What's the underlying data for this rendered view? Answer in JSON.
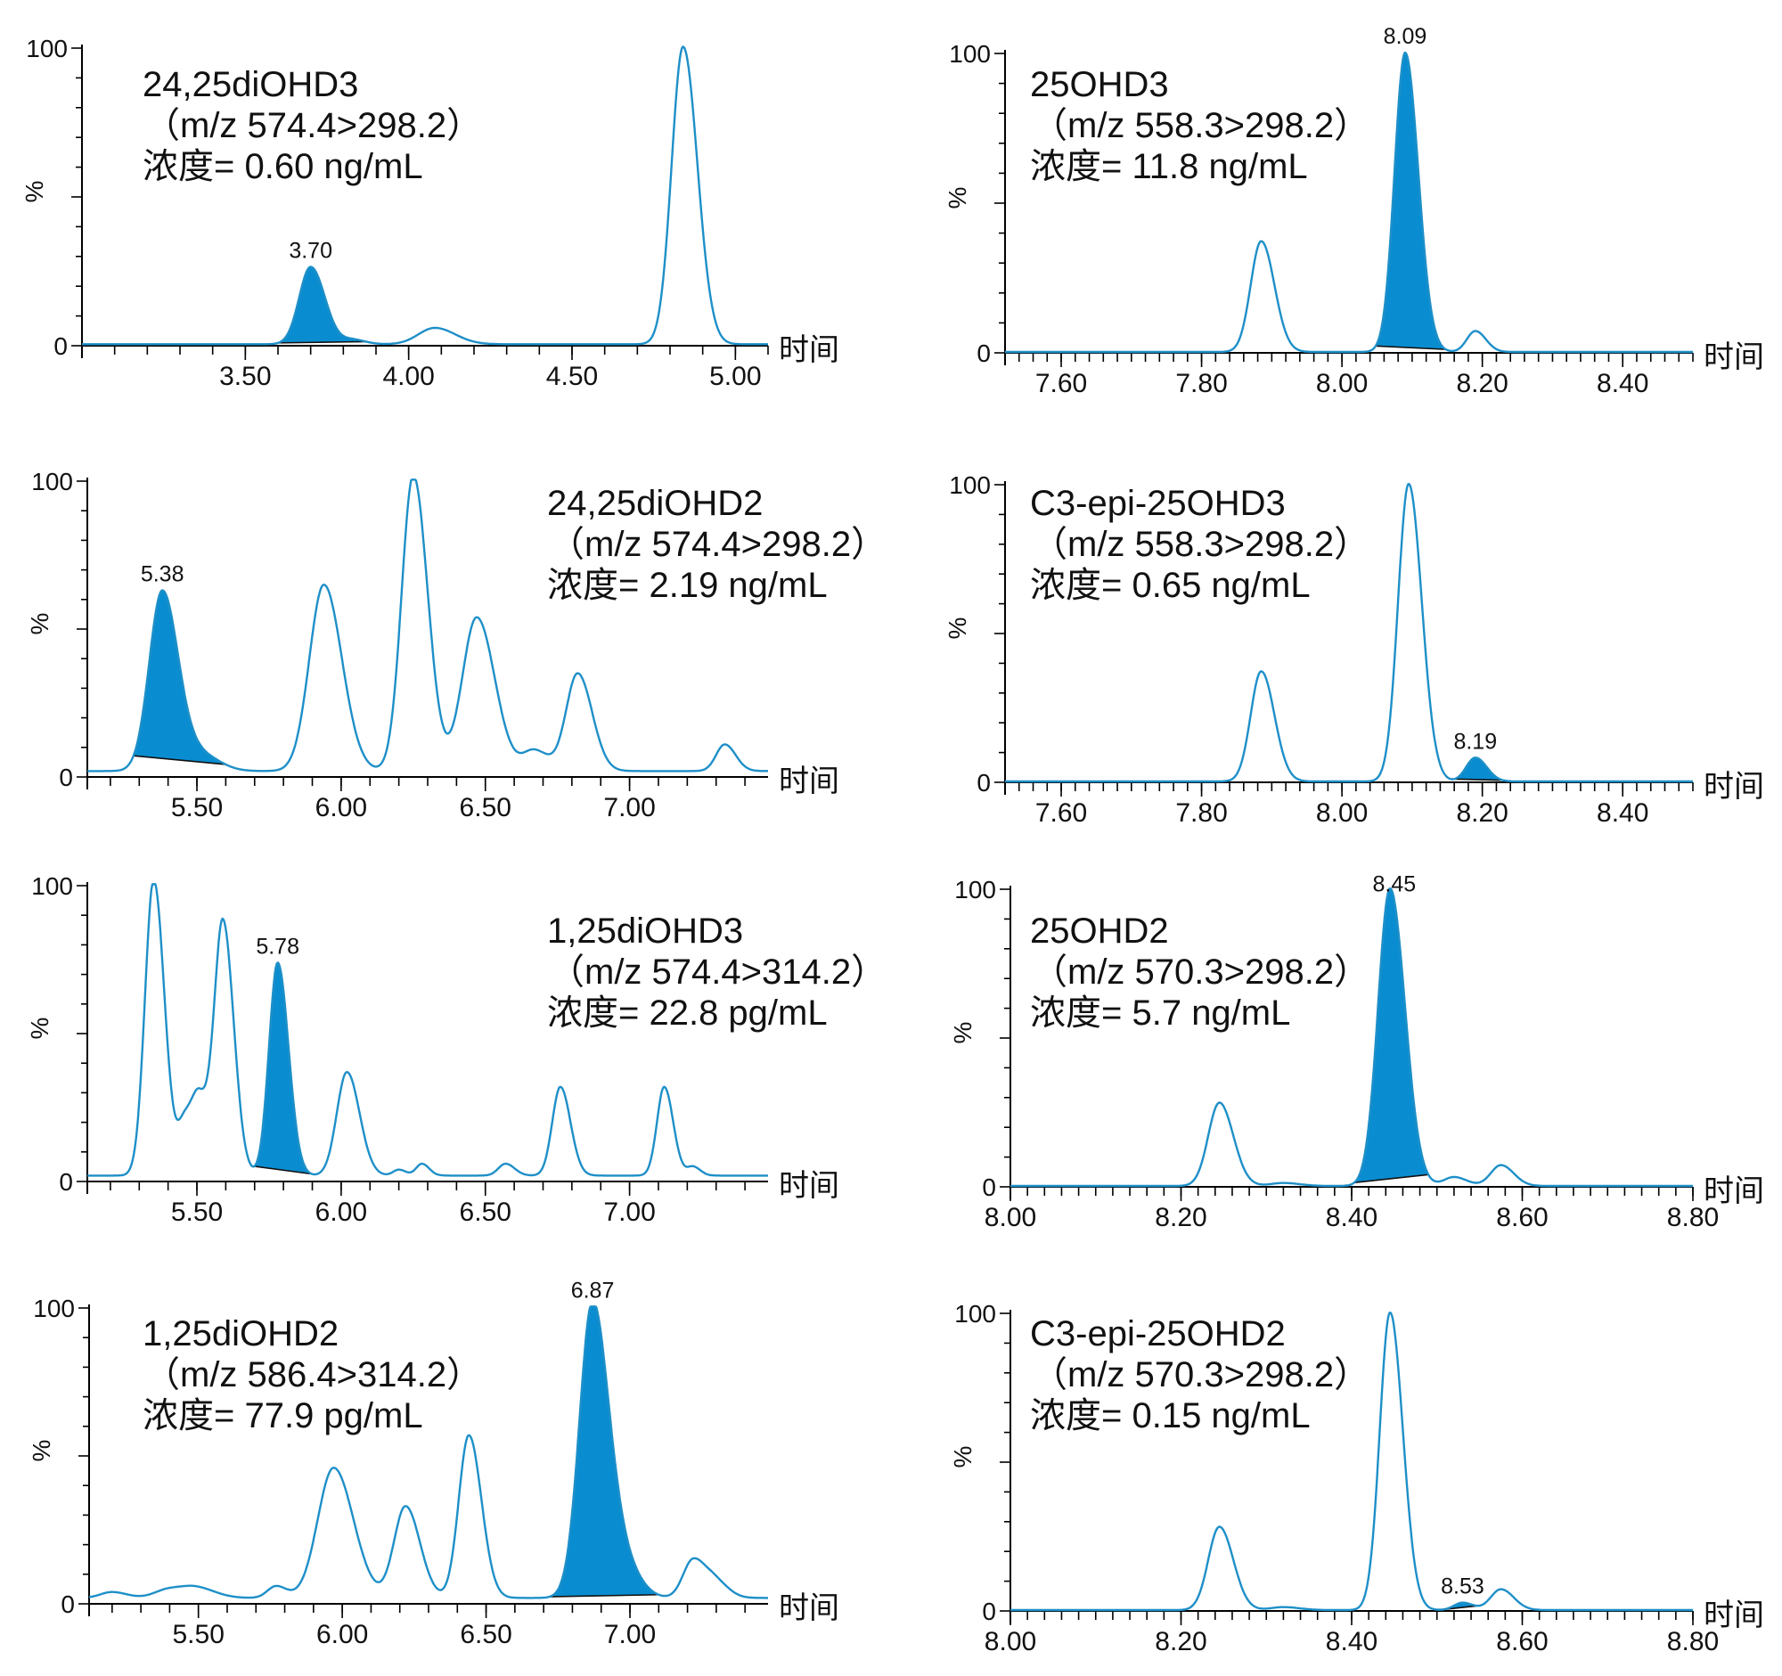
{
  "colors": {
    "trace": "#1e8fc8",
    "fill": "#0a8dd0",
    "axis": "#000000"
  },
  "chart_data": [
    {
      "type": "line",
      "compound": "24,25diOHD3",
      "transition": "（m/z 574.4>298.2）",
      "concentration": "浓度= 0.60 ng/mL",
      "xlabel": "时间",
      "ylabel": "%",
      "xlim": [
        3.0,
        5.1
      ],
      "ylim": [
        0,
        100
      ],
      "xticks": [
        "3.50",
        "4.00",
        "4.50",
        "5.00"
      ],
      "yticks": [
        "0",
        "100"
      ],
      "peaks": [
        {
          "rt": 3.7,
          "h": 26,
          "w": 0.035
        },
        {
          "rt": 3.83,
          "h": 1.5,
          "w": 0.03
        },
        {
          "rt": 4.08,
          "h": 5.5,
          "w": 0.05
        },
        {
          "rt": 4.84,
          "h": 100,
          "w": 0.035
        }
      ],
      "baseline": 0.5,
      "highlight": {
        "rt_label": "3.70",
        "from": 3.6,
        "to": 3.87
      }
    },
    {
      "type": "line",
      "compound": "25OHD3",
      "transition": "（m/z 558.3>298.2）",
      "concentration": "浓度= 11.8 ng/mL",
      "xlabel": "时间",
      "ylabel": "%",
      "xlim": [
        7.52,
        8.5
      ],
      "ylim": [
        0,
        100
      ],
      "xticks": [
        "7.60",
        "7.80",
        "8.00",
        "8.20",
        "8.40"
      ],
      "yticks": [
        "0",
        "100"
      ],
      "peaks": [
        {
          "rt": 7.885,
          "h": 37,
          "w": 0.015
        },
        {
          "rt": 8.09,
          "h": 100,
          "w": 0.015
        },
        {
          "rt": 8.19,
          "h": 7,
          "w": 0.012
        }
      ],
      "baseline": 0.3,
      "highlight": {
        "rt_label": "8.09",
        "from": 8.048,
        "to": 8.148
      }
    },
    {
      "type": "line",
      "compound": "24,25diOHD2",
      "transition": "（m/z 574.4>298.2）",
      "concentration": "浓度= 2.19 ng/mL",
      "xlabel": "时间",
      "ylabel": "%",
      "xlim": [
        5.12,
        7.48
      ],
      "ylim": [
        0,
        100
      ],
      "xticks": [
        "5.50",
        "6.00",
        "6.50",
        "7.00"
      ],
      "yticks": [
        "0",
        "100"
      ],
      "peaks": [
        {
          "rt": 5.38,
          "h": 61,
          "w": 0.045
        },
        {
          "rt": 5.52,
          "h": 5,
          "w": 0.05
        },
        {
          "rt": 5.94,
          "h": 63,
          "w": 0.05
        },
        {
          "rt": 6.25,
          "h": 100,
          "w": 0.04
        },
        {
          "rt": 6.47,
          "h": 52,
          "w": 0.05
        },
        {
          "rt": 6.67,
          "h": 7,
          "w": 0.04
        },
        {
          "rt": 6.82,
          "h": 33,
          "w": 0.04
        },
        {
          "rt": 7.33,
          "h": 9,
          "w": 0.03
        }
      ],
      "baseline": 2,
      "highlight": {
        "rt_label": "5.38",
        "from": 5.28,
        "to": 5.6
      }
    },
    {
      "type": "line",
      "compound": "C3-epi-25OHD3",
      "transition": "（m/z 558.3>298.2）",
      "concentration": "浓度= 0.65 ng/mL",
      "xlabel": "时间",
      "ylabel": "%",
      "xlim": [
        7.52,
        8.5
      ],
      "ylim": [
        0,
        100
      ],
      "xticks": [
        "7.60",
        "7.80",
        "8.00",
        "8.20",
        "8.40"
      ],
      "yticks": [
        "0",
        "100"
      ],
      "peaks": [
        {
          "rt": 7.885,
          "h": 37,
          "w": 0.015
        },
        {
          "rt": 8.095,
          "h": 100,
          "w": 0.015
        },
        {
          "rt": 8.19,
          "h": 8,
          "w": 0.013
        }
      ],
      "baseline": 0.3,
      "highlight": {
        "rt_label": "8.19",
        "from": 8.155,
        "to": 8.23
      }
    },
    {
      "type": "line",
      "compound": "1,25diOHD3",
      "transition": "（m/z 574.4>314.2）",
      "concentration": "浓度= 22.8 pg/mL",
      "xlabel": "时间",
      "ylabel": "%",
      "xlim": [
        5.12,
        7.48
      ],
      "ylim": [
        0,
        100
      ],
      "xticks": [
        "5.50",
        "6.00",
        "6.50",
        "7.00"
      ],
      "yticks": [
        "0",
        "100"
      ],
      "peaks": [
        {
          "rt": 5.35,
          "h": 100,
          "w": 0.03
        },
        {
          "rt": 5.46,
          "h": 18,
          "w": 0.025
        },
        {
          "rt": 5.51,
          "h": 22,
          "w": 0.025
        },
        {
          "rt": 5.59,
          "h": 86,
          "w": 0.03
        },
        {
          "rt": 5.78,
          "h": 72,
          "w": 0.03
        },
        {
          "rt": 6.02,
          "h": 35,
          "w": 0.035
        },
        {
          "rt": 6.2,
          "h": 2,
          "w": 0.02
        },
        {
          "rt": 6.28,
          "h": 4,
          "w": 0.02
        },
        {
          "rt": 6.57,
          "h": 4,
          "w": 0.025
        },
        {
          "rt": 6.76,
          "h": 30,
          "w": 0.028
        },
        {
          "rt": 7.12,
          "h": 30,
          "w": 0.025
        },
        {
          "rt": 7.22,
          "h": 3,
          "w": 0.02
        }
      ],
      "baseline": 2,
      "highlight": {
        "rt_label": "5.78",
        "from": 5.69,
        "to": 5.9
      }
    },
    {
      "type": "line",
      "compound": "25OHD2",
      "transition": "（m/z 570.3>298.2）",
      "concentration": "浓度= 5.7 ng/mL",
      "xlabel": "时间",
      "ylabel": "%",
      "xlim": [
        8.0,
        8.8
      ],
      "ylim": [
        0,
        100
      ],
      "xticks": [
        "8.00",
        "8.20",
        "8.40",
        "8.60",
        "8.80"
      ],
      "yticks": [
        "0",
        "100"
      ],
      "peaks": [
        {
          "rt": 8.245,
          "h": 28,
          "w": 0.013
        },
        {
          "rt": 8.32,
          "h": 1,
          "w": 0.015
        },
        {
          "rt": 8.445,
          "h": 100,
          "w": 0.014
        },
        {
          "rt": 8.52,
          "h": 3,
          "w": 0.012
        },
        {
          "rt": 8.575,
          "h": 7,
          "w": 0.012
        }
      ],
      "baseline": 0.3,
      "highlight": {
        "rt_label": "8.45",
        "from": 8.403,
        "to": 8.49
      }
    },
    {
      "type": "line",
      "compound": "1,25diOHD2",
      "transition": "（m/z 586.4>314.2）",
      "concentration": "浓度= 77.9 pg/mL",
      "xlabel": "时间",
      "ylabel": "%",
      "xlim": [
        5.12,
        7.48
      ],
      "ylim": [
        0,
        100
      ],
      "xticks": [
        "5.50",
        "6.00",
        "6.50",
        "7.00"
      ],
      "yticks": [
        "0",
        "100"
      ],
      "peaks": [
        {
          "rt": 5.2,
          "h": 2,
          "w": 0.04
        },
        {
          "rt": 5.4,
          "h": 3,
          "w": 0.05
        },
        {
          "rt": 5.5,
          "h": 3,
          "w": 0.05
        },
        {
          "rt": 5.77,
          "h": 4,
          "w": 0.03
        },
        {
          "rt": 5.97,
          "h": 44,
          "w": 0.055
        },
        {
          "rt": 6.22,
          "h": 31,
          "w": 0.04
        },
        {
          "rt": 6.44,
          "h": 55,
          "w": 0.035
        },
        {
          "rt": 6.87,
          "h": 100,
          "w": 0.045
        },
        {
          "rt": 6.98,
          "h": 10,
          "w": 0.045
        },
        {
          "rt": 7.22,
          "h": 13,
          "w": 0.035
        },
        {
          "rt": 7.3,
          "h": 5,
          "w": 0.035
        }
      ],
      "baseline": 2,
      "highlight": {
        "rt_label": "6.87",
        "from": 6.72,
        "to": 7.1
      }
    },
    {
      "type": "line",
      "compound": "C3-epi-25OHD2",
      "transition": "（m/z 570.3>298.2）",
      "concentration": "浓度= 0.15 ng/mL",
      "xlabel": "时间",
      "ylabel": "%",
      "xlim": [
        8.0,
        8.8
      ],
      "ylim": [
        0,
        100
      ],
      "xticks": [
        "8.00",
        "8.20",
        "8.40",
        "8.60",
        "8.80"
      ],
      "yticks": [
        "0",
        "100"
      ],
      "peaks": [
        {
          "rt": 8.245,
          "h": 28,
          "w": 0.013
        },
        {
          "rt": 8.32,
          "h": 1,
          "w": 0.015
        },
        {
          "rt": 8.445,
          "h": 100,
          "w": 0.012
        },
        {
          "rt": 8.53,
          "h": 2.5,
          "w": 0.01
        },
        {
          "rt": 8.575,
          "h": 7,
          "w": 0.012
        }
      ],
      "baseline": 0.3,
      "highlight": {
        "rt_label": "8.53",
        "from": 8.505,
        "to": 8.55
      }
    }
  ]
}
